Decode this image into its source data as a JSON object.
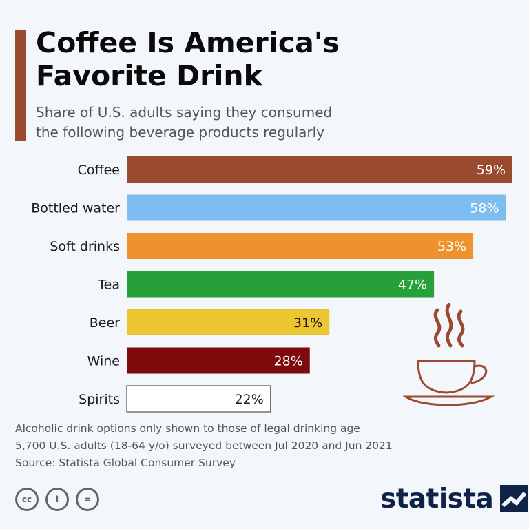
{
  "header": {
    "title_line1": "Coffee Is America's",
    "title_line2": "Favorite Drink",
    "subtitle_line1": "Share of U.S. adults saying they consumed",
    "subtitle_line2": "the following beverage products regularly",
    "accent_color": "#9a4a2f"
  },
  "chart_data": {
    "type": "bar",
    "orientation": "horizontal",
    "categories": [
      "Coffee",
      "Bottled water",
      "Soft drinks",
      "Tea",
      "Beer",
      "Wine",
      "Spirits"
    ],
    "values": [
      59,
      58,
      53,
      47,
      31,
      28,
      22
    ],
    "value_labels": [
      "59%",
      "58%",
      "53%",
      "47%",
      "31%",
      "28%",
      "22%"
    ],
    "colors": [
      "#9a4a2f",
      "#7ebdf0",
      "#ee922e",
      "#26a13a",
      "#ecc630",
      "#7e0b0b",
      "#ffffff"
    ],
    "label_colors": [
      "#ffffff",
      "#ffffff",
      "#ffffff",
      "#ffffff",
      "#1a1a1a",
      "#ffffff",
      "#1a1a1a"
    ],
    "xlim": [
      0,
      59
    ],
    "grid": false,
    "legend": "none"
  },
  "decoration": {
    "icon": "coffee-cup-icon",
    "color": "#9a4a2f"
  },
  "footer": {
    "notes": [
      "Alcoholic drink options only shown to those of legal drinking age",
      "5,700 U.S. adults (18-64 y/o) surveyed between Jul 2020 and Jun 2021",
      "Source: Statista Global Consumer Survey"
    ],
    "license_icons": [
      "cc-icon",
      "by-icon",
      "nd-icon"
    ],
    "license_symbols": [
      "cc",
      "i",
      "="
    ],
    "brand": "statista",
    "brand_color": "#0f2346"
  }
}
